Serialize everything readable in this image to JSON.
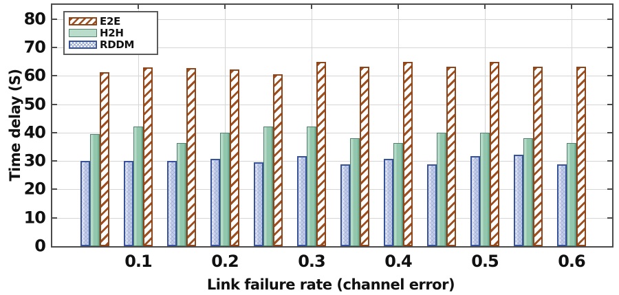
{
  "chart_data": {
    "type": "bar",
    "title": "",
    "xlabel": "Link failure rate (channel error)",
    "ylabel": "Time delay (S)",
    "x": [
      0.05,
      0.1,
      0.15,
      0.2,
      0.25,
      0.3,
      0.35,
      0.4,
      0.45,
      0.5,
      0.55,
      0.6
    ],
    "x_tick_values": [
      0.1,
      0.2,
      0.3,
      0.4,
      0.5,
      0.6
    ],
    "x_tick_labels": [
      "0.1",
      "0.2",
      "0.3",
      "0.4",
      "0.5",
      "0.6"
    ],
    "y_ticks": [
      0,
      10,
      20,
      30,
      40,
      50,
      60,
      70,
      80
    ],
    "ylim": [
      0,
      85
    ],
    "xlim": [
      0,
      0.646
    ],
    "grid": true,
    "legend_position": "top-left",
    "bar_order_left_to_right": [
      "RDDM",
      "H2H",
      "E2E"
    ],
    "series": [
      {
        "name": "E2E",
        "pattern": "diagonal-hatch",
        "color": "#9c4e1e",
        "fill": "#ffffff",
        "values": [
          61.0,
          62.7,
          62.4,
          61.9,
          60.2,
          64.6,
          63.0,
          64.7,
          63.0,
          64.6,
          63.0,
          63.0
        ]
      },
      {
        "name": "H2H",
        "pattern": "solid",
        "color": "#517f6d",
        "fill": "#92c7ad",
        "values": [
          39.2,
          41.8,
          36.2,
          39.8,
          41.9,
          41.9,
          37.7,
          36.1,
          39.6,
          39.7,
          37.7,
          36.1
        ]
      },
      {
        "name": "RDDM",
        "pattern": "fine-crosshatch",
        "color": "#37539b",
        "fill": "#ccd5ec",
        "values": [
          29.9,
          29.9,
          29.9,
          30.4,
          29.4,
          31.6,
          28.7,
          30.4,
          28.7,
          31.6,
          32.0,
          28.7
        ]
      }
    ]
  }
}
